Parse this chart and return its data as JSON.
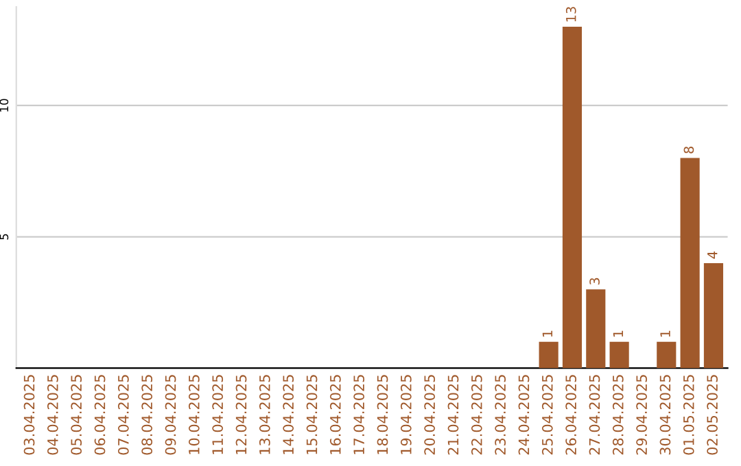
{
  "chart_data": {
    "type": "bar",
    "categories": [
      "03.04.2025",
      "04.04.2025",
      "05.04.2025",
      "06.04.2025",
      "07.04.2025",
      "08.04.2025",
      "09.04.2025",
      "10.04.2025",
      "11.04.2025",
      "12.04.2025",
      "13.04.2025",
      "14.04.2025",
      "15.04.2025",
      "16.04.2025",
      "17.04.2025",
      "18.04.2025",
      "19.04.2025",
      "20.04.2025",
      "21.04.2025",
      "22.04.2025",
      "23.04.2025",
      "24.04.2025",
      "25.04.2025",
      "26.04.2025",
      "27.04.2025",
      "28.04.2025",
      "29.04.2025",
      "30.04.2025",
      "01.05.2025",
      "02.05.2025"
    ],
    "values": [
      0,
      0,
      0,
      0,
      0,
      0,
      0,
      0,
      0,
      0,
      0,
      0,
      0,
      0,
      0,
      0,
      0,
      0,
      0,
      0,
      0,
      0,
      1,
      13,
      3,
      1,
      0,
      1,
      8,
      4
    ],
    "value_labels": [
      null,
      null,
      null,
      null,
      null,
      null,
      null,
      null,
      null,
      null,
      null,
      null,
      null,
      null,
      null,
      null,
      null,
      null,
      null,
      null,
      null,
      null,
      "1",
      "13",
      "3",
      "1",
      null,
      "1",
      "8",
      "4"
    ],
    "color": "#a0592b",
    "ylim": [
      0,
      13.75
    ],
    "yticks": [
      5,
      10
    ],
    "grid": "y"
  }
}
